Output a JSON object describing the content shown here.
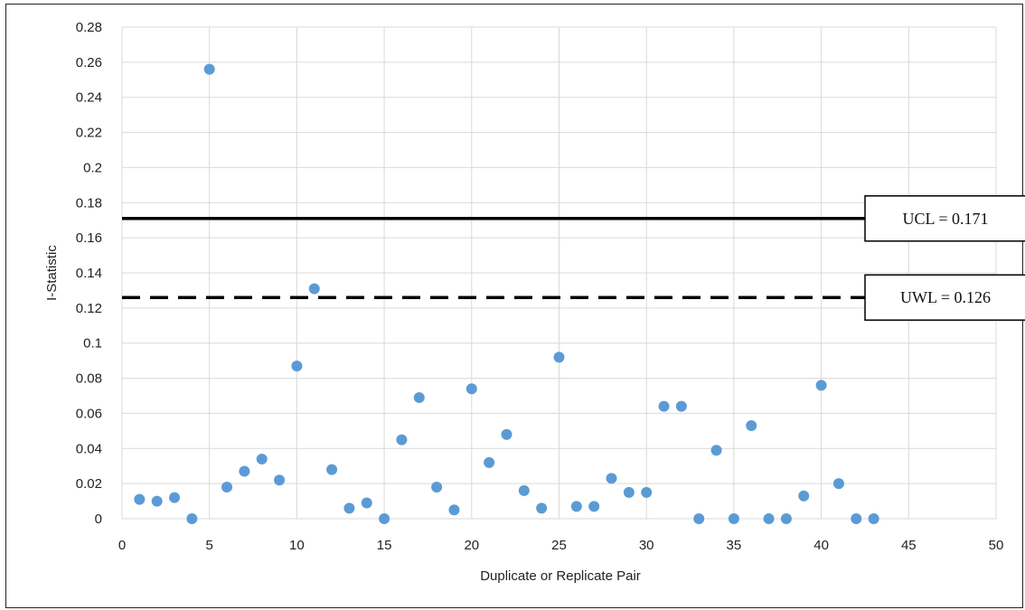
{
  "chart_data": {
    "type": "scatter",
    "xlabel": "Duplicate or Replicate Pair",
    "ylabel": "I-Statistic",
    "xlim": [
      0,
      50
    ],
    "ylim": [
      0,
      0.28
    ],
    "xticks": [
      0,
      5,
      10,
      15,
      20,
      25,
      30,
      35,
      40,
      45,
      50
    ],
    "yticks": [
      0,
      0.02,
      0.04,
      0.06,
      0.08,
      0.1,
      0.12,
      0.14,
      0.16,
      0.18,
      0.2,
      0.22,
      0.24,
      0.26,
      0.28
    ],
    "ytick_labels": [
      "0",
      "0.02",
      "0.04",
      "0.06",
      "0.08",
      "0.1",
      "0.12",
      "0.14",
      "0.16",
      "0.18",
      "0.2",
      "0.22",
      "0.24",
      "0.26",
      "0.28"
    ],
    "grid": true,
    "point_color": "#5b9bd5",
    "x": [
      1,
      2,
      3,
      4,
      5,
      6,
      7,
      8,
      9,
      10,
      11,
      12,
      13,
      14,
      15,
      16,
      17,
      18,
      19,
      20,
      21,
      22,
      23,
      24,
      25,
      26,
      27,
      28,
      29,
      30,
      31,
      32,
      33,
      34,
      35,
      36,
      37,
      38,
      39,
      40,
      41,
      42,
      43
    ],
    "y": [
      0.011,
      0.01,
      0.012,
      0.0,
      0.256,
      0.018,
      0.027,
      0.034,
      0.022,
      0.087,
      0.131,
      0.028,
      0.006,
      0.009,
      0.0,
      0.045,
      0.069,
      0.018,
      0.005,
      0.074,
      0.032,
      0.048,
      0.016,
      0.006,
      0.092,
      0.007,
      0.007,
      0.023,
      0.015,
      0.015,
      0.064,
      0.064,
      0.0,
      0.039,
      0.0,
      0.053,
      0.0,
      0.0,
      0.013,
      0.076,
      0.02,
      0.0,
      0.0
    ],
    "reference_lines": [
      {
        "label": "UCL = 0.171",
        "value": 0.171,
        "style": "solid",
        "color": "#000000"
      },
      {
        "label": "UWL = 0.126",
        "value": 0.126,
        "style": "dashed",
        "color": "#000000"
      }
    ]
  }
}
